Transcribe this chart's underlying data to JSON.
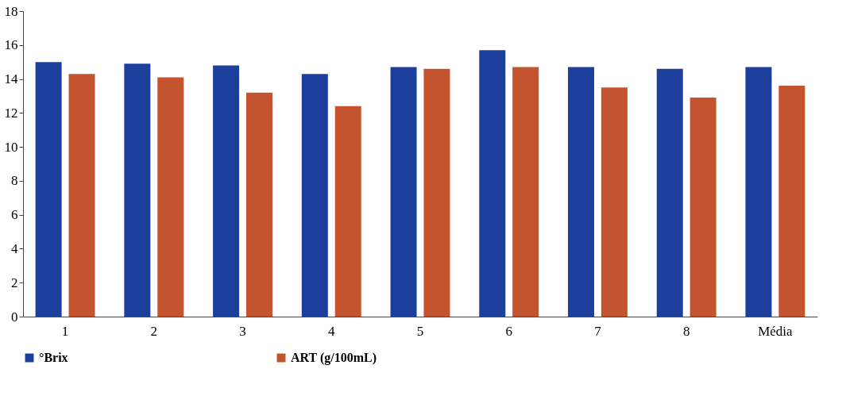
{
  "chart_data": {
    "type": "bar",
    "categories": [
      "1",
      "2",
      "3",
      "4",
      "5",
      "6",
      "7",
      "8",
      "Média"
    ],
    "series": [
      {
        "name": "°Brix",
        "color": "#1d3f9c",
        "values": [
          15.0,
          14.9,
          14.8,
          14.3,
          14.7,
          15.7,
          14.7,
          14.6,
          14.7
        ]
      },
      {
        "name": "ART  (g/100mL)",
        "color": "#c4532f",
        "values": [
          14.3,
          14.1,
          13.2,
          12.4,
          14.6,
          14.7,
          13.5,
          12.9,
          13.6
        ]
      }
    ],
    "ylim": [
      0,
      18
    ],
    "yticks": [
      0,
      2,
      4,
      6,
      8,
      10,
      12,
      14,
      16,
      18
    ],
    "grid": false,
    "legend": "bottom"
  }
}
